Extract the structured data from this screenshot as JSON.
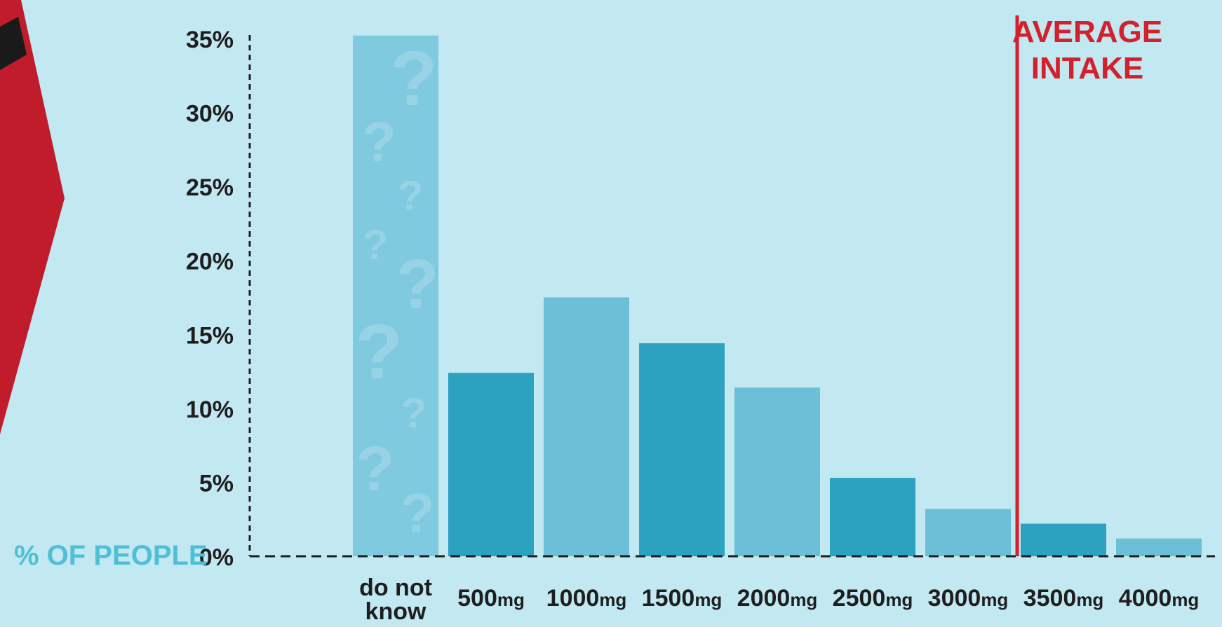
{
  "chart_data": {
    "type": "bar",
    "ylabel": "% OF PEOPLE",
    "yticks": [
      "0%",
      "5%",
      "10%",
      "15%",
      "20%",
      "25%",
      "30%",
      "35%"
    ],
    "ylim": [
      0,
      35
    ],
    "grid": false,
    "categories": [
      {
        "label": "do not know",
        "value": 35.2
      },
      {
        "label": "500",
        "unit": "mg",
        "value": 12.4
      },
      {
        "label": "1000",
        "unit": "mg",
        "value": 17.5
      },
      {
        "label": "1500",
        "unit": "mg",
        "value": 14.4
      },
      {
        "label": "2000",
        "unit": "mg",
        "value": 11.4
      },
      {
        "label": "2500",
        "unit": "mg",
        "value": 5.3
      },
      {
        "label": "3000",
        "unit": "mg",
        "value": 3.2
      },
      {
        "label": "3500",
        "unit": "mg",
        "value": 2.2
      },
      {
        "label": "4000",
        "unit": "mg",
        "value": 1.2
      }
    ],
    "annotation": {
      "label_line1": "AVERAGE",
      "label_line2": "INTAKE",
      "at_category": "3500",
      "color": "#d4202c"
    },
    "colors": {
      "background": "#c2e8f1",
      "unknown_bar": "#7fcadf",
      "bar_dark": "#2ca1c0",
      "bar_light": "#6bbfd6",
      "axis": "#1e1e1e",
      "left_shape_red": "#c01c2c",
      "left_shape_stripe": "#1a1a1a"
    }
  }
}
